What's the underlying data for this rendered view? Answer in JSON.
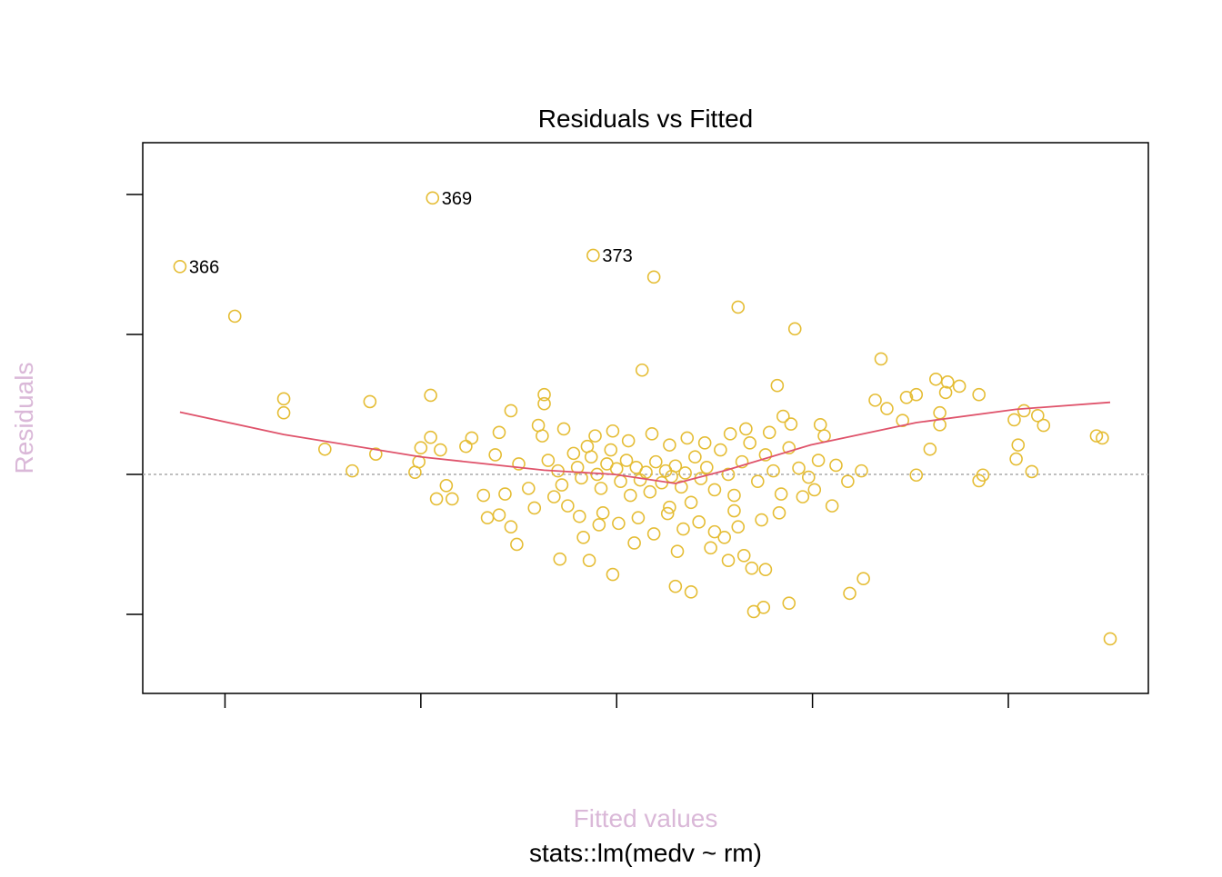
{
  "chart_data": {
    "type": "scatter",
    "title": "Residuals vs Fitted",
    "subtitle": "stats::lm(medv ~ rm)",
    "xlabel": "Fitted values",
    "ylabel": "Residuals",
    "xlim": [
      -4.2,
      47.15
    ],
    "ylim": [
      -31.3,
      47.4
    ],
    "xticks": [
      0,
      10,
      20,
      30,
      40
    ],
    "yticks": [
      -20,
      0,
      20,
      40
    ],
    "color": "#e5bd35",
    "reference_line": 0,
    "x": [
      0.5,
      21.9,
      26.2,
      29.1,
      33.5,
      21.3,
      3.0,
      3.0,
      7.4,
      10.5,
      5.1,
      6.5,
      7.7,
      36.3,
      36.9,
      37.5,
      36.8,
      38.5,
      34.8,
      35.3,
      33.2,
      33.8,
      34.6,
      36.5,
      36.5,
      36.0,
      35.3,
      40.8,
      40.3,
      41.5,
      41.8,
      40.5,
      40.4,
      41.2,
      38.5,
      38.7,
      44.5,
      44.8,
      45.2,
      31.9,
      32.6,
      27.0,
      27.5,
      28.8,
      23.8,
      23.0,
      19.8,
      17.1,
      18.6,
      14.9,
      14.6,
      13.4,
      14.0,
      10.8,
      11.6,
      11.3,
      9.7,
      9.9,
      10.0,
      10.5,
      11.0,
      12.3,
      12.6,
      14.0,
      14.6,
      16.3,
      16.3,
      16.0,
      26.9,
      27.6,
      26.5,
      25.7,
      28.2,
      28.5,
      30.4,
      22.7,
      25.0,
      26.0,
      16.5,
      17,
      17.2,
      17.8,
      18,
      18.2,
      18.5,
      18.7,
      19,
      19.2,
      19.5,
      19.7,
      20,
      20.2,
      20.5,
      20.7,
      21,
      21.2,
      21.5,
      21.7,
      22,
      22.3,
      22.5,
      22.8,
      23,
      23.3,
      23.5,
      23.8,
      24,
      24.3,
      24.6,
      25,
      25.3,
      25.7,
      26,
      26.4,
      26.8,
      27.2,
      27.6,
      28,
      28.4,
      28.8,
      29.3,
      29.8,
      30.3,
      30.6,
      31.2,
      31.8,
      32.5,
      16.8,
      17.5,
      18.1,
      19.3,
      20.1,
      21.1,
      21.9,
      22.6,
      23.4,
      24.2,
      25.5,
      18.9,
      19.8,
      20.6,
      21.8,
      22.7,
      23.6,
      24.5,
      25.8,
      26.6,
      27.8,
      28.9,
      15.5,
      15,
      14.3,
      13.2,
      13.8,
      15.8,
      16.2,
      17.3,
      18.3,
      19.1,
      20.9,
      23.1,
      24.8,
      26.2,
      27.4,
      28.3,
      29.5,
      30.1,
      31
    ],
    "values": [
      22.6,
      28.2,
      23.9,
      20.8,
      16.5,
      14.9,
      10.8,
      8.8,
      10.4,
      11.3,
      3.6,
      0.5,
      2.9,
      13.6,
      13.2,
      12.6,
      11.7,
      11.4,
      11,
      11.4,
      10.6,
      9.4,
      7.7,
      8.8,
      7.1,
      3.6,
      -0.1,
      9.1,
      7.8,
      8.4,
      7.0,
      4.2,
      2.2,
      0.4,
      -0.9,
      -0.1,
      5.5,
      5.2,
      -23.5,
      -17,
      -14.9,
      -19.6,
      -19,
      -18.4,
      -16.8,
      -16,
      -14.3,
      -12.1,
      -12.3,
      -10,
      -7.5,
      -6.2,
      -5.8,
      -3.5,
      -3.5,
      -1.6,
      0.3,
      1.8,
      3.8,
      5.3,
      3.5,
      4,
      5.2,
      6,
      9.1,
      11.4,
      10.1,
      7,
      -13.4,
      -13.6,
      -11.6,
      -12.3,
      12.7,
      8.3,
      7.1,
      -4.7,
      -8.2,
      -5.2,
      2,
      0.5,
      -1.5,
      3,
      1,
      -0.5,
      4,
      2.5,
      0,
      -2,
      1.5,
      3.5,
      0.8,
      -1,
      2,
      -3,
      1,
      -0.8,
      0.3,
      -2.5,
      1.8,
      -1.2,
      0.5,
      -0.3,
      1.2,
      -1.8,
      0.2,
      -4,
      2.5,
      -0.6,
      1,
      -2.2,
      3.5,
      0,
      -3,
      1.8,
      4.5,
      -1,
      2.8,
      0.5,
      -2.8,
      3.8,
      0.9,
      -0.4,
      2,
      5.5,
      1.3,
      -1,
      0.5,
      -3.2,
      -4.5,
      -6,
      -5.5,
      -7,
      -6.2,
      -8.5,
      -5.6,
      -7.8,
      -6.8,
      -9,
      5.5,
      6.2,
      4.8,
      5.8,
      4.2,
      5.2,
      4.5,
      5.8,
      6.5,
      6,
      7.2,
      -2,
      1.5,
      -2.8,
      -3,
      2.8,
      -4.8,
      5.5,
      6.5,
      -9,
      -7.2,
      -9.8,
      -11,
      -10.5,
      -7.5,
      -6.5,
      -5.5,
      -3.2,
      -2.2,
      -4.5
    ],
    "annotations": [
      {
        "label": "366",
        "x": -2.3,
        "y": 29.7
      },
      {
        "label": "369",
        "x": 10.6,
        "y": 39.5
      },
      {
        "label": "373",
        "x": 18.8,
        "y": 31.3
      }
    ],
    "smooth": {
      "color": "#df536b",
      "x": [
        -2.3,
        3,
        10,
        16.3,
        19.9,
        23,
        25.6,
        29.9,
        35.3,
        40.4,
        45.2
      ],
      "y": [
        8.9,
        5.7,
        2.5,
        0.6,
        0,
        -1.3,
        0.6,
        4.2,
        7.4,
        9.3,
        10.3
      ]
    }
  }
}
